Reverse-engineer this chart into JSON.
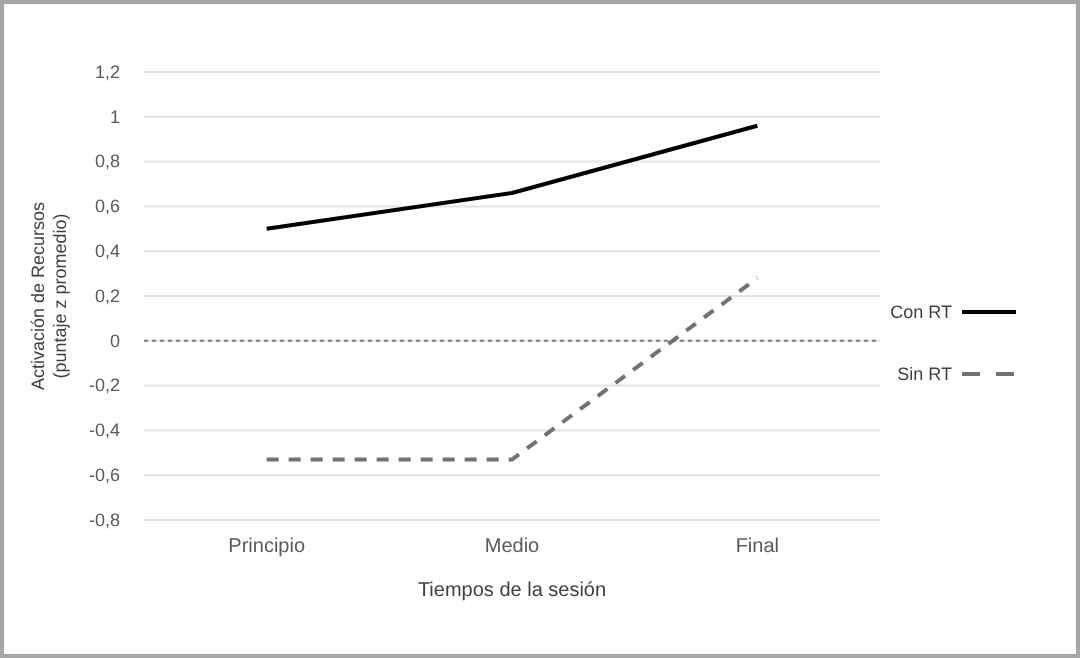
{
  "chart_data": {
    "type": "line",
    "xlabel": "Tiempos de la sesión",
    "ylabel": "Activación de Recursos\n(puntaje z promedio)",
    "categories": [
      "Principio",
      "Medio",
      "Final"
    ],
    "series": [
      {
        "name": "Con RT",
        "color": "#000000",
        "values": [
          0.5,
          0.66,
          0.96
        ],
        "line_style": "solid"
      },
      {
        "name": "Sin RT",
        "color": "#767171",
        "values": [
          -0.53,
          -0.53,
          0.28
        ],
        "line_style": "dashed"
      }
    ],
    "ylim": [
      -0.8,
      1.2
    ],
    "yticks": [
      {
        "value": -0.8,
        "label": "-0,8"
      },
      {
        "value": -0.6,
        "label": "-0,6"
      },
      {
        "value": -0.4,
        "label": "-0,4"
      },
      {
        "value": -0.2,
        "label": "-0,2"
      },
      0,
      {
        "value": 0.2,
        "label": "0,2"
      },
      {
        "value": 0.4,
        "label": "0,4"
      },
      {
        "value": 0.6,
        "label": "0,6"
      },
      {
        "value": 0.8,
        "label": "0,8"
      },
      1,
      {
        "value": 1.2,
        "label": "1,2"
      }
    ],
    "grid": "y",
    "legend": "right",
    "marker": "none",
    "ref_lines": [
      {
        "axis": "y",
        "value": 0,
        "color": "#7f7f7f",
        "line_style": "dotted"
      }
    ]
  }
}
